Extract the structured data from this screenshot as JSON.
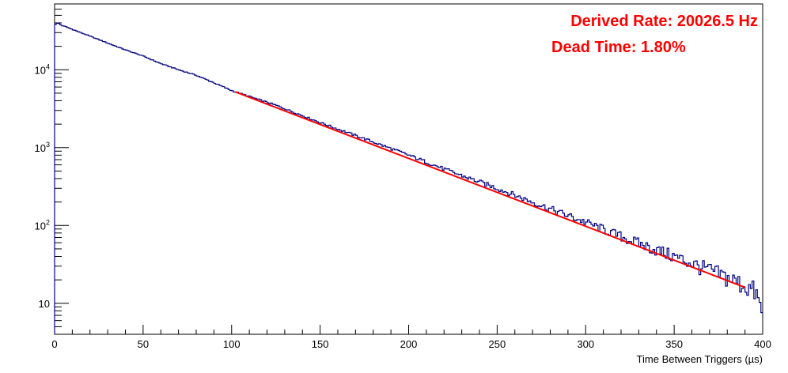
{
  "chart_data": {
    "type": "line",
    "title": "",
    "xlabel": "Time Between Triggers (µs)",
    "ylabel": "",
    "xlim": [
      0,
      400
    ],
    "ylim": [
      4,
      70000
    ],
    "y_scale": "log",
    "grid": false,
    "x_ticks": [
      "0",
      "50",
      "100",
      "150",
      "200",
      "250",
      "300",
      "350",
      "400"
    ],
    "y_ticks": [
      {
        "value": 10,
        "base": "10",
        "exp": ""
      },
      {
        "value": 100,
        "base": "10",
        "exp": "2"
      },
      {
        "value": 1000,
        "base": "10",
        "exp": "3"
      },
      {
        "value": 10000,
        "base": "10",
        "exp": "4"
      }
    ],
    "series": [
      {
        "style": "histogram",
        "color": "#000080",
        "x": [
          0,
          2,
          4,
          6,
          10,
          20,
          30,
          40,
          50,
          60,
          70,
          80,
          90,
          100,
          125,
          150,
          175,
          200,
          225,
          250,
          275,
          300,
          325,
          350,
          375,
          390,
          396,
          399
        ],
        "y": [
          38000,
          40000,
          37000,
          36000,
          33000,
          27000,
          22000,
          18000,
          15000,
          12000,
          10000,
          8500,
          6800,
          5400,
          3500,
          2100,
          1300,
          800,
          480,
          300,
          180,
          110,
          65,
          40,
          24,
          17,
          14,
          8
        ]
      },
      {
        "style": "fit",
        "color": "#ff0000",
        "x": [
          102,
          390
        ],
        "y": [
          5200,
          16
        ]
      }
    ],
    "annotations": [
      {
        "text": "Derived Rate: 20026.5 Hz",
        "color": "#ff0000"
      },
      {
        "text": "Dead Time: 1.80%",
        "color": "#ff0000"
      }
    ]
  }
}
